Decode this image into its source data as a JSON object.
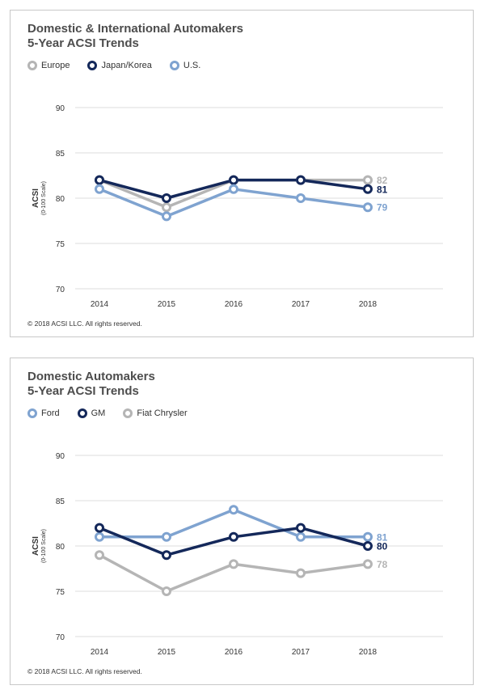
{
  "chart_data": [
    {
      "type": "line",
      "title_lines": [
        "Domestic & International Automakers",
        "5-Year ACSI Trends"
      ],
      "ylabel": "ACSI",
      "ylabel_sub": "(0-100 Scale)",
      "x": [
        "2014",
        "2015",
        "2016",
        "2017",
        "2018"
      ],
      "ylim": [
        70,
        90
      ],
      "yticks": [
        70,
        75,
        80,
        85,
        90
      ],
      "grid": true,
      "legend_position": "top-left",
      "series": [
        {
          "name": "Europe",
          "color": "#b5b5b5",
          "values": [
            82,
            79,
            82,
            82,
            82
          ],
          "end_label": "82"
        },
        {
          "name": "Japan/Korea",
          "color": "#14285a",
          "values": [
            82,
            80,
            82,
            82,
            81
          ],
          "end_label": "81"
        },
        {
          "name": "U.S.",
          "color": "#7fa3d0",
          "values": [
            81,
            78,
            81,
            80,
            79
          ],
          "end_label": "79"
        }
      ],
      "footer": "© 2018 ACSI LLC. All rights reserved."
    },
    {
      "type": "line",
      "title_lines": [
        "Domestic Automakers",
        "5-Year ACSI Trends"
      ],
      "ylabel": "ACSI",
      "ylabel_sub": "(0-100 Scale)",
      "x": [
        "2014",
        "2015",
        "2016",
        "2017",
        "2018"
      ],
      "ylim": [
        70,
        90
      ],
      "yticks": [
        70,
        75,
        80,
        85,
        90
      ],
      "grid": true,
      "legend_position": "top-left",
      "series": [
        {
          "name": "Ford",
          "color": "#7fa3d0",
          "values": [
            81,
            81,
            84,
            81,
            81
          ],
          "end_label": "81"
        },
        {
          "name": "GM",
          "color": "#14285a",
          "values": [
            82,
            79,
            81,
            82,
            80
          ],
          "end_label": "80"
        },
        {
          "name": "Fiat Chrysler",
          "color": "#b5b5b5",
          "values": [
            79,
            75,
            78,
            77,
            78
          ],
          "end_label": "78"
        }
      ],
      "footer": "© 2018 ACSI LLC. All rights reserved."
    }
  ]
}
